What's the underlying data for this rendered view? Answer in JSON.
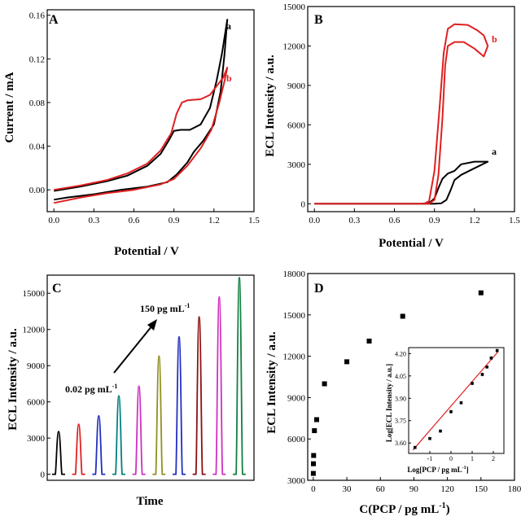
{
  "chart_data": [
    {
      "panel": "A",
      "type": "line",
      "xlabel": "Potential / V",
      "ylabel": "Current / mA",
      "xlim": [
        -0.05,
        1.5
      ],
      "ylim": [
        -0.02,
        0.165
      ],
      "xticks": [
        "0.0",
        "0.3",
        "0.6",
        "0.9",
        "1.2",
        "1.5"
      ],
      "yticks": [
        "0.00",
        "0.04",
        "0.08",
        "0.12",
        "0.16"
      ],
      "xtick_values": [
        0,
        0.3,
        0.6,
        0.9,
        1.2,
        1.5
      ],
      "ytick_values": [
        0,
        0.04,
        0.08,
        0.12,
        0.16
      ],
      "series": [
        {
          "name": "a",
          "color": "#000000",
          "points": [
            [
              0,
              -0.001
            ],
            [
              0.2,
              0.003
            ],
            [
              0.4,
              0.008
            ],
            [
              0.55,
              0.013
            ],
            [
              0.7,
              0.022
            ],
            [
              0.8,
              0.033
            ],
            [
              0.86,
              0.045
            ],
            [
              0.9,
              0.054
            ],
            [
              0.95,
              0.055
            ],
            [
              1.02,
              0.055
            ],
            [
              1.1,
              0.06
            ],
            [
              1.17,
              0.075
            ],
            [
              1.22,
              0.1
            ],
            [
              1.26,
              0.125
            ],
            [
              1.3,
              0.156
            ],
            [
              1.28,
              0.125
            ],
            [
              1.25,
              0.09
            ],
            [
              1.2,
              0.06
            ],
            [
              1.12,
              0.045
            ],
            [
              1.05,
              0.035
            ],
            [
              1.0,
              0.025
            ],
            [
              0.92,
              0.014
            ],
            [
              0.85,
              0.007
            ],
            [
              0.7,
              0.003
            ],
            [
              0.5,
              0.0
            ],
            [
              0.3,
              -0.004
            ],
            [
              0.1,
              -0.007
            ],
            [
              0,
              -0.009
            ]
          ]
        },
        {
          "name": "b",
          "color": "#e02020",
          "points": [
            [
              0,
              0.0
            ],
            [
              0.2,
              0.004
            ],
            [
              0.4,
              0.009
            ],
            [
              0.55,
              0.015
            ],
            [
              0.7,
              0.024
            ],
            [
              0.8,
              0.036
            ],
            [
              0.88,
              0.052
            ],
            [
              0.92,
              0.07
            ],
            [
              0.96,
              0.08
            ],
            [
              1.0,
              0.082
            ],
            [
              1.1,
              0.083
            ],
            [
              1.17,
              0.087
            ],
            [
              1.22,
              0.095
            ],
            [
              1.27,
              0.103
            ],
            [
              1.3,
              0.112
            ],
            [
              1.28,
              0.1
            ],
            [
              1.24,
              0.08
            ],
            [
              1.18,
              0.055
            ],
            [
              1.1,
              0.038
            ],
            [
              1.0,
              0.022
            ],
            [
              0.9,
              0.01
            ],
            [
              0.8,
              0.005
            ],
            [
              0.6,
              0.0
            ],
            [
              0.4,
              -0.003
            ],
            [
              0.2,
              -0.007
            ],
            [
              0,
              -0.012
            ]
          ]
        }
      ]
    },
    {
      "panel": "B",
      "type": "line",
      "xlabel": "Potential / V",
      "ylabel": "ECL Intensity / a.u.",
      "xlim": [
        -0.05,
        1.5
      ],
      "ylim": [
        -600,
        15000
      ],
      "xticks": [
        "0.0",
        "0.3",
        "0.6",
        "0.9",
        "1.2",
        "1.5"
      ],
      "yticks": [
        "0",
        "3000",
        "6000",
        "9000",
        "12000",
        "15000"
      ],
      "xtick_values": [
        0,
        0.3,
        0.6,
        0.9,
        1.2,
        1.5
      ],
      "ytick_values": [
        0,
        3000,
        6000,
        9000,
        12000,
        15000
      ],
      "series": [
        {
          "name": "a",
          "color": "#000000",
          "points": [
            [
              0,
              0
            ],
            [
              0.8,
              0
            ],
            [
              0.86,
              50
            ],
            [
              0.9,
              400
            ],
            [
              0.93,
              1200
            ],
            [
              0.96,
              1900
            ],
            [
              1.0,
              2300
            ],
            [
              1.05,
              2500
            ],
            [
              1.1,
              3000
            ],
            [
              1.2,
              3200
            ],
            [
              1.3,
              3200
            ],
            [
              1.2,
              2700
            ],
            [
              1.1,
              2200
            ],
            [
              1.05,
              1800
            ],
            [
              1.02,
              1000
            ],
            [
              0.99,
              300
            ],
            [
              0.95,
              30
            ],
            [
              0.9,
              0
            ],
            [
              0,
              0
            ]
          ]
        },
        {
          "name": "b",
          "color": "#e02020",
          "points": [
            [
              0,
              0
            ],
            [
              0.82,
              0
            ],
            [
              0.86,
              200
            ],
            [
              0.9,
              2500
            ],
            [
              0.94,
              7500
            ],
            [
              0.97,
              11500
            ],
            [
              1.0,
              13300
            ],
            [
              1.05,
              13650
            ],
            [
              1.15,
              13600
            ],
            [
              1.22,
              13200
            ],
            [
              1.27,
              12800
            ],
            [
              1.3,
              12000
            ],
            [
              1.27,
              11200
            ],
            [
              1.2,
              11800
            ],
            [
              1.12,
              12300
            ],
            [
              1.05,
              12300
            ],
            [
              1.0,
              12000
            ],
            [
              0.98,
              10500
            ],
            [
              0.96,
              6500
            ],
            [
              0.93,
              2200
            ],
            [
              0.9,
              300
            ],
            [
              0.86,
              0
            ],
            [
              0,
              0
            ]
          ]
        }
      ]
    },
    {
      "panel": "C",
      "type": "line",
      "xlabel": "Time",
      "ylabel": "ECL Intensity / a.u.",
      "ylim": [
        -500,
        16500
      ],
      "yticks": [
        "0",
        "3000",
        "6000",
        "9000",
        "12000",
        "15000"
      ],
      "ytick_values": [
        0,
        3000,
        6000,
        9000,
        12000,
        15000
      ],
      "peaks": [
        {
          "height": 3550,
          "color": "#000000"
        },
        {
          "height": 4150,
          "color": "#e02020"
        },
        {
          "height": 4850,
          "color": "#2030c0"
        },
        {
          "height": 6500,
          "color": "#008080"
        },
        {
          "height": 7300,
          "color": "#d030c0"
        },
        {
          "height": 9800,
          "color": "#909020"
        },
        {
          "height": 11400,
          "color": "#2030c0"
        },
        {
          "height": 13050,
          "color": "#8b1010"
        },
        {
          "height": 14700,
          "color": "#d030c0"
        },
        {
          "height": 16300,
          "color": "#108040"
        }
      ],
      "annotations": {
        "low": "0.02 pg mL",
        "low_sup": "-1",
        "high": "150 pg mL",
        "high_sup": "-1"
      }
    },
    {
      "panel": "D",
      "type": "scatter",
      "xlabel": "C(PCP / pg mL",
      "xlabel_sup": "-1",
      "xlabel_end": ")",
      "ylabel": "ECL Intensity / a.u.",
      "xlim": [
        -5,
        180
      ],
      "ylim": [
        3000,
        18000
      ],
      "xticks": [
        "0",
        "30",
        "60",
        "90",
        "120",
        "150",
        "180"
      ],
      "yticks": [
        "3000",
        "6000",
        "9000",
        "12000",
        "15000",
        "18000"
      ],
      "xtick_values": [
        0,
        30,
        60,
        90,
        120,
        150,
        180
      ],
      "ytick_values": [
        3000,
        6000,
        9000,
        12000,
        15000,
        18000
      ],
      "points": [
        [
          0.02,
          3500
        ],
        [
          0.1,
          4200
        ],
        [
          0.3,
          4800
        ],
        [
          1,
          6600
        ],
        [
          3,
          7400
        ],
        [
          10,
          10000
        ],
        [
          30,
          11600
        ],
        [
          50,
          13100
        ],
        [
          80,
          14900
        ],
        [
          150,
          16600
        ]
      ],
      "inset": {
        "type": "scatter",
        "xlabel": "Log[PCP / pg mL",
        "xlabel_sup": "-1",
        "xlabel_end": "]",
        "ylabel": "Log[ECL Intensity / a.u.]",
        "xlim": [
          -2,
          2.5
        ],
        "ylim": [
          3.53,
          4.24
        ],
        "xticks": [
          "-1",
          "0",
          "1",
          "2"
        ],
        "yticks": [
          "3.60",
          "3.75",
          "3.90",
          "4.05",
          "4.20"
        ],
        "xtick_values": [
          -1,
          0,
          1,
          2
        ],
        "ytick_values": [
          3.6,
          3.75,
          3.9,
          4.05,
          4.2
        ],
        "points": [
          [
            -1.7,
            3.57
          ],
          [
            -1.0,
            3.63
          ],
          [
            -0.5,
            3.68
          ],
          [
            0,
            3.81
          ],
          [
            0.48,
            3.87
          ],
          [
            1.0,
            4.0
          ],
          [
            1.48,
            4.06
          ],
          [
            1.7,
            4.11
          ],
          [
            1.9,
            4.17
          ],
          [
            2.18,
            4.22
          ]
        ],
        "errors": [
          0.01,
          0.01,
          0.01,
          0.012,
          0.01,
          0.012,
          0.012,
          0.01,
          0.012,
          0.012
        ],
        "fit": {
          "color": "#e02020",
          "x0": -1.8,
          "x1": 2.2,
          "slope": 0.164,
          "intercept": 3.848
        }
      }
    }
  ]
}
